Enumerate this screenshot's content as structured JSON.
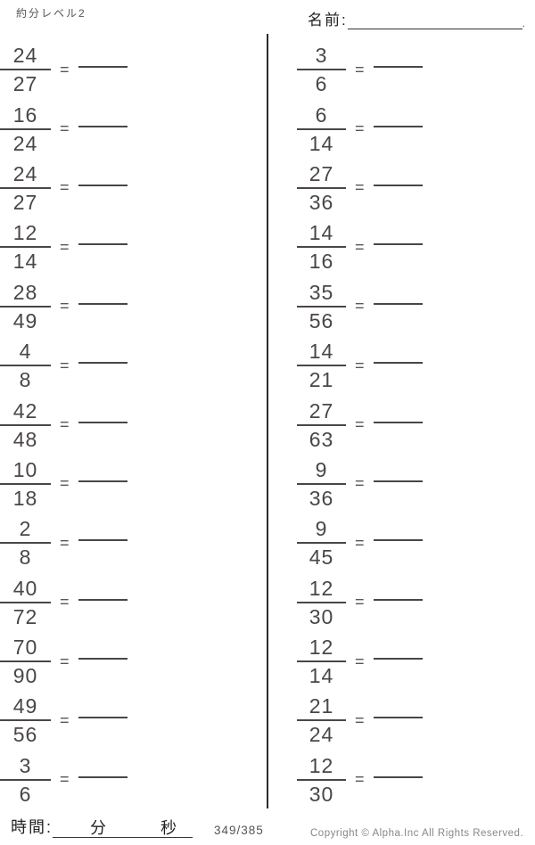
{
  "header": {
    "title": "約分レベル2",
    "name_label": "名前:",
    "name_line_end": "."
  },
  "equals_sign": "=",
  "problems": {
    "left": [
      {
        "num": "24",
        "den": "27"
      },
      {
        "num": "16",
        "den": "24"
      },
      {
        "num": "24",
        "den": "27"
      },
      {
        "num": "12",
        "den": "14"
      },
      {
        "num": "28",
        "den": "49"
      },
      {
        "num": "4",
        "den": "8"
      },
      {
        "num": "42",
        "den": "48"
      },
      {
        "num": "10",
        "den": "18"
      },
      {
        "num": "2",
        "den": "8"
      },
      {
        "num": "40",
        "den": "72"
      },
      {
        "num": "70",
        "den": "90"
      },
      {
        "num": "49",
        "den": "56"
      },
      {
        "num": "3",
        "den": "6"
      }
    ],
    "right": [
      {
        "num": "3",
        "den": "6"
      },
      {
        "num": "6",
        "den": "14"
      },
      {
        "num": "27",
        "den": "36"
      },
      {
        "num": "14",
        "den": "16"
      },
      {
        "num": "35",
        "den": "56"
      },
      {
        "num": "14",
        "den": "21"
      },
      {
        "num": "27",
        "den": "63"
      },
      {
        "num": "9",
        "den": "36"
      },
      {
        "num": "9",
        "den": "45"
      },
      {
        "num": "12",
        "den": "30"
      },
      {
        "num": "12",
        "den": "14"
      },
      {
        "num": "21",
        "den": "24"
      },
      {
        "num": "12",
        "den": "30"
      }
    ]
  },
  "footer": {
    "time_label": "時間:",
    "minutes_label": "分",
    "seconds_label": "秒",
    "page": "349/385",
    "copyright": "Copyright © Alpha.Inc All Rights Reserved."
  },
  "colors": {
    "ink": "#4a4646",
    "divider": "#2e2a2a",
    "muted": "#8a8686"
  }
}
